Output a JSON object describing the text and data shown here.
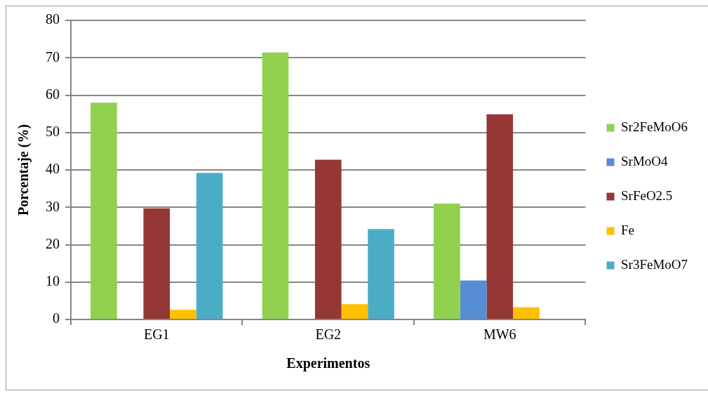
{
  "chart_data": {
    "type": "bar",
    "xlabel": "Experimentos",
    "ylabel": "Porcentaje (%)",
    "categories": [
      "EG1",
      "EG2",
      "MW6"
    ],
    "series": [
      {
        "name": "Sr2FeMoO6",
        "color": "#92d050",
        "values": [
          58,
          71.4,
          31
        ]
      },
      {
        "name": "SrMoO4",
        "color": "#558ed5",
        "values": [
          null,
          null,
          10.4
        ]
      },
      {
        "name": "SrFeO2.5",
        "color": "#953735",
        "values": [
          29.7,
          42.7,
          54.9
        ]
      },
      {
        "name": "Fe",
        "color": "#ffc000",
        "values": [
          2.6,
          4.1,
          3.3
        ]
      },
      {
        "name": "Sr3FeMoO7",
        "color": "#4bacc6",
        "values": [
          39.2,
          24.2,
          null
        ]
      }
    ],
    "ylim": [
      0,
      80
    ],
    "yticks": [
      0,
      10,
      20,
      30,
      40,
      50,
      60,
      70,
      80
    ],
    "grid": "y",
    "legend": "right"
  }
}
